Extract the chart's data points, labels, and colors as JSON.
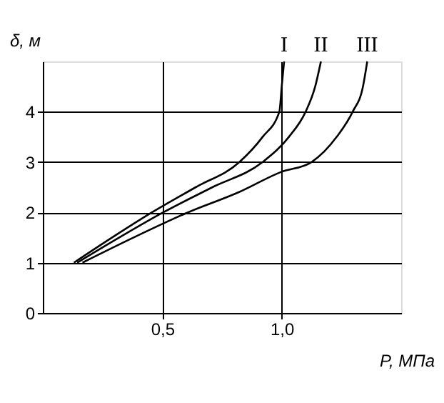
{
  "chart_data": {
    "type": "line",
    "xlabel": "P, МПа",
    "ylabel": "δ, м",
    "xlim": [
      0,
      1.5
    ],
    "ylim": [
      0,
      5
    ],
    "xticks": [
      {
        "value": 0.5,
        "label": "0,5"
      },
      {
        "value": 1.0,
        "label": "1,0"
      }
    ],
    "yticks": [
      0,
      1,
      2,
      3,
      4
    ],
    "grid": true,
    "legend": false,
    "marker": "none",
    "line_style": "solid",
    "series": [
      {
        "name": "I",
        "color": "#000000",
        "x": [
          0.13,
          0.29,
          0.457,
          0.64,
          0.823,
          0.92,
          0.99,
          1.0,
          1.01
        ],
        "values": [
          1,
          1.5,
          2,
          2.5,
          3,
          3.5,
          4,
          4.5,
          5
        ]
      },
      {
        "name": "II",
        "color": "#000000",
        "x": [
          0.144,
          0.32,
          0.504,
          0.71,
          0.92,
          1.03,
          1.1,
          1.14,
          1.164
        ],
        "values": [
          1,
          1.5,
          2,
          2.5,
          3,
          3.5,
          4,
          4.5,
          5
        ]
      },
      {
        "name": "III",
        "color": "#000000",
        "x": [
          0.166,
          0.38,
          0.608,
          0.82,
          0.996,
          1.125,
          1.23,
          1.297,
          1.34,
          1.358
        ],
        "values": [
          1,
          1.5,
          2,
          2.4,
          2.8,
          3,
          3.5,
          4,
          4.5,
          5
        ]
      }
    ]
  }
}
